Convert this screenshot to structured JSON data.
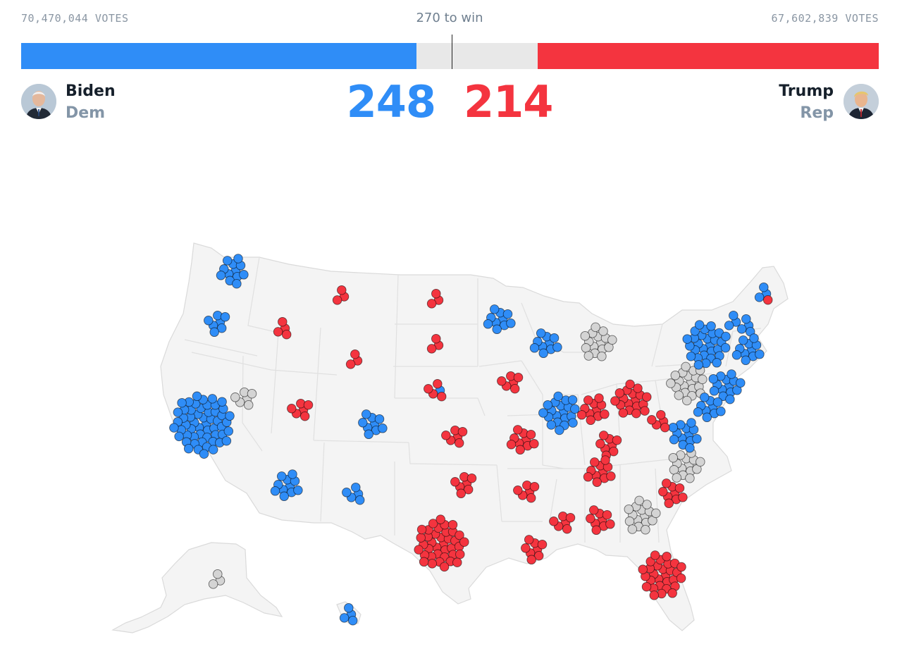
{
  "header": {
    "dem_votes": "70,470,044 VOTES",
    "rep_votes": "67,602,839 VOTES",
    "to_win": "270 to win",
    "total_ev": 538,
    "win_ev": 270
  },
  "candidates": {
    "dem": {
      "name": "Biden",
      "party": "Dem",
      "ev": "248",
      "ev_value": 248,
      "avatar": "biden-portrait"
    },
    "rep": {
      "name": "Trump",
      "party": "Rep",
      "ev": "214",
      "ev_value": 214,
      "avatar": "trump-portrait"
    }
  },
  "colors": {
    "dem": "#2f8df7",
    "rep": "#f4343f",
    "undecided": "#d4d4d4",
    "land": "#f4f4f4",
    "border": "#dadada"
  },
  "map": {
    "type": "us-electoral-dot-map",
    "states": [
      {
        "id": "WA",
        "ev": 12,
        "dem": 12,
        "rep": 0
      },
      {
        "id": "OR",
        "ev": 7,
        "dem": 7,
        "rep": 0
      },
      {
        "id": "CA",
        "ev": 55,
        "dem": 55,
        "rep": 0
      },
      {
        "id": "NV",
        "ev": 6,
        "dem": 0,
        "rep": 0
      },
      {
        "id": "ID",
        "ev": 4,
        "dem": 0,
        "rep": 4
      },
      {
        "id": "MT",
        "ev": 3,
        "dem": 0,
        "rep": 3
      },
      {
        "id": "WY",
        "ev": 3,
        "dem": 0,
        "rep": 3
      },
      {
        "id": "UT",
        "ev": 6,
        "dem": 0,
        "rep": 6
      },
      {
        "id": "CO",
        "ev": 9,
        "dem": 9,
        "rep": 0
      },
      {
        "id": "AZ",
        "ev": 11,
        "dem": 11,
        "rep": 0
      },
      {
        "id": "NM",
        "ev": 5,
        "dem": 5,
        "rep": 0
      },
      {
        "id": "ND",
        "ev": 3,
        "dem": 0,
        "rep": 3
      },
      {
        "id": "SD",
        "ev": 3,
        "dem": 0,
        "rep": 3
      },
      {
        "id": "NE",
        "ev": 5,
        "dem": 1,
        "rep": 4
      },
      {
        "id": "KS",
        "ev": 6,
        "dem": 0,
        "rep": 6
      },
      {
        "id": "OK",
        "ev": 7,
        "dem": 0,
        "rep": 7
      },
      {
        "id": "TX",
        "ev": 38,
        "dem": 0,
        "rep": 38
      },
      {
        "id": "MN",
        "ev": 10,
        "dem": 10,
        "rep": 0
      },
      {
        "id": "IA",
        "ev": 6,
        "dem": 0,
        "rep": 6
      },
      {
        "id": "MO",
        "ev": 10,
        "dem": 0,
        "rep": 10
      },
      {
        "id": "AR",
        "ev": 6,
        "dem": 0,
        "rep": 6
      },
      {
        "id": "LA",
        "ev": 8,
        "dem": 0,
        "rep": 8
      },
      {
        "id": "WI",
        "ev": 10,
        "dem": 10,
        "rep": 0
      },
      {
        "id": "IL",
        "ev": 20,
        "dem": 20,
        "rep": 0
      },
      {
        "id": "MI",
        "ev": 16,
        "dem": 0,
        "rep": 0
      },
      {
        "id": "IN",
        "ev": 11,
        "dem": 0,
        "rep": 11
      },
      {
        "id": "OH",
        "ev": 18,
        "dem": 0,
        "rep": 18
      },
      {
        "id": "KY",
        "ev": 8,
        "dem": 0,
        "rep": 8
      },
      {
        "id": "TN",
        "ev": 11,
        "dem": 0,
        "rep": 11
      },
      {
        "id": "MS",
        "ev": 6,
        "dem": 0,
        "rep": 6
      },
      {
        "id": "AL",
        "ev": 9,
        "dem": 0,
        "rep": 9
      },
      {
        "id": "GA",
        "ev": 16,
        "dem": 0,
        "rep": 0
      },
      {
        "id": "FL",
        "ev": 29,
        "dem": 0,
        "rep": 29
      },
      {
        "id": "SC",
        "ev": 9,
        "dem": 0,
        "rep": 9
      },
      {
        "id": "NC",
        "ev": 15,
        "dem": 0,
        "rep": 0
      },
      {
        "id": "VA",
        "ev": 13,
        "dem": 13,
        "rep": 0
      },
      {
        "id": "WV",
        "ev": 5,
        "dem": 0,
        "rep": 5
      },
      {
        "id": "PA",
        "ev": 20,
        "dem": 0,
        "rep": 0
      },
      {
        "id": "NY",
        "ev": 29,
        "dem": 29,
        "rep": 0
      },
      {
        "id": "NJ",
        "ev": 14,
        "dem": 14,
        "rep": 0
      },
      {
        "id": "MD",
        "ev": 10,
        "dem": 10,
        "rep": 0
      },
      {
        "id": "VT",
        "ev": 3,
        "dem": 3,
        "rep": 0
      },
      {
        "id": "NH",
        "ev": 4,
        "dem": 4,
        "rep": 0
      },
      {
        "id": "MA",
        "ev": 11,
        "dem": 11,
        "rep": 0
      },
      {
        "id": "ME",
        "ev": 4,
        "dem": 3,
        "rep": 1
      },
      {
        "id": "AK",
        "ev": 3,
        "dem": 0,
        "rep": 0
      },
      {
        "id": "HI",
        "ev": 4,
        "dem": 4,
        "rep": 0
      }
    ]
  }
}
